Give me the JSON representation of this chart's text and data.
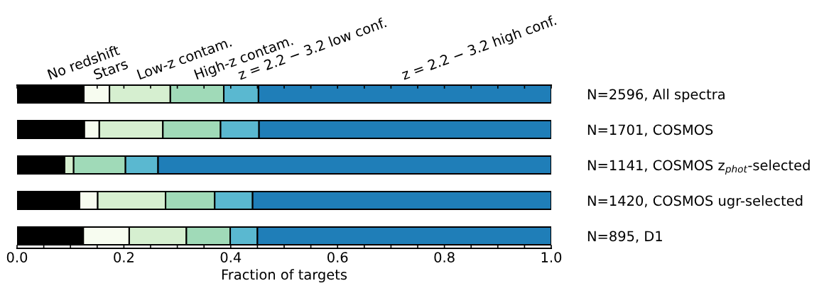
{
  "chart_data": {
    "type": "bar",
    "orientation": "horizontal",
    "stacked": true,
    "xlabel": "Fraction of targets",
    "categories": [
      "N=2596, All spectra",
      "N=1701, COSMOS",
      "N=1141, COSMOS z$_{phot}$-selected",
      "N=1420, COSMOS ugr-selected",
      "N=895, D1"
    ],
    "series": [
      {
        "name": "No redshift",
        "color": "#000000",
        "values": [
          0.125,
          0.126,
          0.089,
          0.117,
          0.124
        ]
      },
      {
        "name": "Stars",
        "color": "#f7fcf0",
        "values": [
          0.048,
          0.028,
          0,
          0.034,
          0.086
        ]
      },
      {
        "name": "Low-z contam.",
        "color": "#d6efd0",
        "values": [
          0.114,
          0.119,
          0.017,
          0.127,
          0.107
        ]
      },
      {
        "name": "High-z contam.",
        "color": "#a0dab8",
        "values": [
          0.1,
          0.108,
          0.097,
          0.092,
          0.082
        ]
      },
      {
        "name": "z = 2.2 − 3.2 low conf.",
        "color": "#5ab8d0",
        "values": [
          0.065,
          0.072,
          0.061,
          0.071,
          0.051
        ]
      },
      {
        "name": "z = 2.2 − 3.2 high conf.",
        "color": "#1f7eb8",
        "values": [
          0.548,
          0.547,
          0.736,
          0.559,
          0.55
        ]
      }
    ],
    "xlim": [
      0,
      1
    ],
    "xticks": [
      {
        "value": 0,
        "label": "0.0"
      },
      {
        "value": 0.05,
        "label": null
      },
      {
        "value": 0.1,
        "label": null
      },
      {
        "value": 0.15,
        "label": null
      },
      {
        "value": 0.2,
        "label": "0.2"
      },
      {
        "value": 0.25,
        "label": null
      },
      {
        "value": 0.3,
        "label": null
      },
      {
        "value": 0.35,
        "label": null
      },
      {
        "value": 0.4,
        "label": "0.4"
      },
      {
        "value": 0.45,
        "label": null
      },
      {
        "value": 0.5,
        "label": null
      },
      {
        "value": 0.55,
        "label": null
      },
      {
        "value": 0.6,
        "label": "0.6"
      },
      {
        "value": 0.65,
        "label": null
      },
      {
        "value": 0.7,
        "label": null
      },
      {
        "value": 0.75,
        "label": null
      },
      {
        "value": 0.8,
        "label": "0.8"
      },
      {
        "value": 0.85,
        "label": null
      },
      {
        "value": 0.9,
        "label": null
      },
      {
        "value": 0.95,
        "label": null
      },
      {
        "value": 1,
        "label": "1.0"
      }
    ],
    "grid": false,
    "legend": false
  }
}
